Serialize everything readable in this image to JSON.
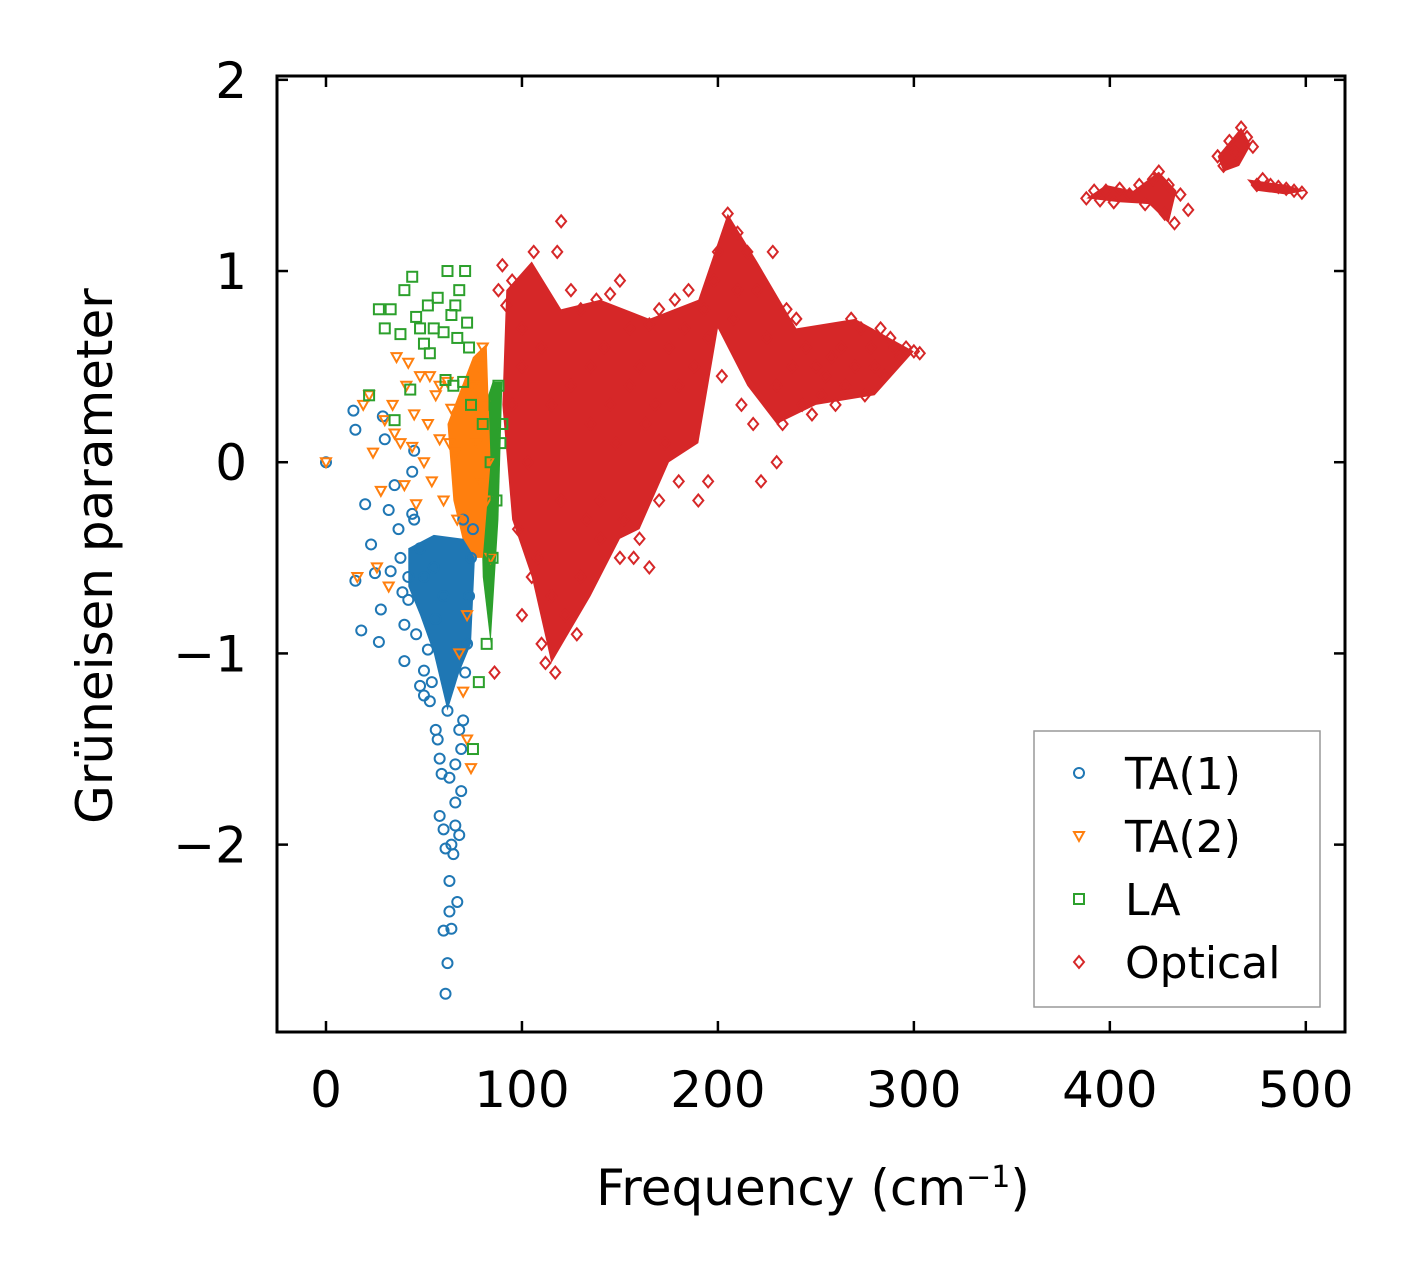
{
  "chart_data": {
    "type": "scatter",
    "title": "",
    "xlabel": "Frequency (cm",
    "xlabel_sup": "−1",
    "xlabel_suffix": ")",
    "ylabel": "Grüneisen parameter",
    "xlim": [
      -25,
      520
    ],
    "ylim": [
      -2.98,
      2.02
    ],
    "x_ticks": [
      0,
      100,
      200,
      300,
      400,
      500
    ],
    "x_tick_labels": [
      "0",
      "100",
      "200",
      "300",
      "400",
      "500"
    ],
    "y_ticks": [
      -2,
      -1,
      0,
      1,
      2
    ],
    "y_tick_labels": [
      "−2",
      "−1",
      "0",
      "1",
      "2"
    ],
    "grid": false,
    "legend_position": "bottom-right",
    "series": [
      {
        "name": "TA(1)",
        "marker": "circle",
        "color": "#1f77b4",
        "points": [
          [
            0,
            0
          ],
          [
            15,
            -0.62
          ],
          [
            14,
            0.27
          ],
          [
            15,
            0.17
          ],
          [
            18,
            -0.88
          ],
          [
            20,
            -0.22
          ],
          [
            23,
            -0.43
          ],
          [
            25,
            -0.58
          ],
          [
            27,
            -0.94
          ],
          [
            28,
            -0.77
          ],
          [
            29,
            0.24
          ],
          [
            30,
            0.12
          ],
          [
            32,
            -0.25
          ],
          [
            33,
            -0.57
          ],
          [
            35,
            -0.12
          ],
          [
            37,
            -0.35
          ],
          [
            38,
            -0.5
          ],
          [
            39,
            -0.68
          ],
          [
            40,
            -0.85
          ],
          [
            40,
            -1.04
          ],
          [
            42,
            -0.72
          ],
          [
            44,
            -0.27
          ],
          [
            45,
            0.06
          ],
          [
            46,
            -0.9
          ],
          [
            48,
            -1.17
          ],
          [
            50,
            -1.22
          ],
          [
            50,
            -1.09
          ],
          [
            52,
            -0.98
          ],
          [
            53,
            -1.25
          ],
          [
            55,
            -0.55
          ],
          [
            56,
            -0.82
          ],
          [
            57,
            -1.45
          ],
          [
            58,
            -1.85
          ],
          [
            59,
            -1.63
          ],
          [
            60,
            -1.92
          ],
          [
            60,
            -2.45
          ],
          [
            61,
            -2.78
          ],
          [
            62,
            -2.62
          ],
          [
            62,
            -1.3
          ],
          [
            63,
            -2.19
          ],
          [
            64,
            -2.44
          ],
          [
            65,
            -2.05
          ],
          [
            66,
            -1.58
          ],
          [
            66,
            -1.78
          ],
          [
            67,
            -2.3
          ],
          [
            68,
            -1.95
          ],
          [
            69,
            -1.5
          ],
          [
            70,
            -1.35
          ],
          [
            71,
            -1.1
          ],
          [
            72,
            -0.95
          ],
          [
            73,
            -0.7
          ],
          [
            74,
            -0.5
          ],
          [
            75,
            -0.35
          ],
          [
            63,
            -2.35
          ],
          [
            64,
            -2.0
          ],
          [
            61,
            -2.02
          ],
          [
            66,
            -1.9
          ],
          [
            69,
            -1.72
          ],
          [
            63,
            -1.65
          ],
          [
            68,
            -1.4
          ],
          [
            58,
            -1.55
          ],
          [
            56,
            -1.4
          ],
          [
            54,
            -1.15
          ],
          [
            50,
            -0.6
          ],
          [
            48,
            -0.45
          ],
          [
            45,
            -0.3
          ],
          [
            44,
            -0.05
          ],
          [
            42,
            -0.6
          ],
          [
            60,
            -0.7
          ],
          [
            70,
            -0.3
          ]
        ]
      },
      {
        "name": "TA(2)",
        "marker": "triangle-down",
        "color": "#ff7f0e",
        "points": [
          [
            0,
            0
          ],
          [
            16,
            -0.6
          ],
          [
            19,
            0.3
          ],
          [
            22,
            0.35
          ],
          [
            24,
            0.05
          ],
          [
            26,
            -0.55
          ],
          [
            28,
            -0.15
          ],
          [
            30,
            0.22
          ],
          [
            32,
            -0.65
          ],
          [
            34,
            0.3
          ],
          [
            35,
            0.15
          ],
          [
            36,
            0.55
          ],
          [
            38,
            0.1
          ],
          [
            40,
            -0.12
          ],
          [
            42,
            0.52
          ],
          [
            44,
            0.08
          ],
          [
            46,
            -0.22
          ],
          [
            48,
            0.45
          ],
          [
            50,
            0.0
          ],
          [
            52,
            0.2
          ],
          [
            54,
            -0.1
          ],
          [
            56,
            0.35
          ],
          [
            58,
            0.12
          ],
          [
            60,
            -0.2
          ],
          [
            62,
            0.42
          ],
          [
            64,
            0.28
          ],
          [
            66,
            0.05
          ],
          [
            68,
            -1.0
          ],
          [
            70,
            -1.2
          ],
          [
            72,
            -1.45
          ],
          [
            74,
            -1.6
          ],
          [
            75,
            0.4
          ],
          [
            77,
            0.1
          ],
          [
            78,
            0.5
          ],
          [
            80,
            0.6
          ],
          [
            81,
            0.3
          ],
          [
            82,
            -0.2
          ],
          [
            83,
            0.0
          ],
          [
            84,
            -0.5
          ],
          [
            58,
            0.4
          ],
          [
            53,
            0.45
          ],
          [
            45,
            0.25
          ],
          [
            41,
            0.4
          ],
          [
            63,
            0.1
          ],
          [
            67,
            -0.3
          ],
          [
            72,
            -0.8
          ],
          [
            76,
            0.2
          ],
          [
            79,
            -0.1
          ]
        ]
      },
      {
        "name": "LA",
        "marker": "square",
        "color": "#2ca02c",
        "points": [
          [
            22,
            0.35
          ],
          [
            27,
            0.8
          ],
          [
            30,
            0.7
          ],
          [
            33,
            0.8
          ],
          [
            35,
            0.22
          ],
          [
            38,
            0.67
          ],
          [
            40,
            0.9
          ],
          [
            43,
            0.38
          ],
          [
            44,
            0.97
          ],
          [
            46,
            0.76
          ],
          [
            48,
            0.7
          ],
          [
            50,
            0.62
          ],
          [
            52,
            0.82
          ],
          [
            53,
            0.57
          ],
          [
            55,
            0.7
          ],
          [
            57,
            0.86
          ],
          [
            60,
            0.68
          ],
          [
            61,
            0.43
          ],
          [
            62,
            1.0
          ],
          [
            64,
            0.77
          ],
          [
            66,
            0.82
          ],
          [
            67,
            0.65
          ],
          [
            68,
            0.9
          ],
          [
            70,
            0.42
          ],
          [
            71,
            1.0
          ],
          [
            72,
            0.73
          ],
          [
            74,
            0.3
          ],
          [
            75,
            -1.5
          ],
          [
            78,
            -1.15
          ],
          [
            80,
            0.2
          ],
          [
            82,
            -0.95
          ],
          [
            84,
            0.0
          ],
          [
            85,
            -0.5
          ],
          [
            86,
            0.3
          ],
          [
            87,
            -0.2
          ],
          [
            88,
            0.4
          ],
          [
            89,
            0.1
          ],
          [
            90,
            0.2
          ],
          [
            65,
            0.4
          ],
          [
            73,
            0.6
          ]
        ]
      },
      {
        "name": "Optical",
        "marker": "diamond",
        "color": "#d62728",
        "points": [
          [
            86,
            -1.1
          ],
          [
            88,
            0.9
          ],
          [
            90,
            1.03
          ],
          [
            92,
            0.82
          ],
          [
            95,
            0.95
          ],
          [
            98,
            -0.35
          ],
          [
            100,
            0.5
          ],
          [
            103,
            0.0
          ],
          [
            106,
            1.1
          ],
          [
            108,
            -0.5
          ],
          [
            110,
            0.6
          ],
          [
            112,
            -1.05
          ],
          [
            115,
            0.3
          ],
          [
            117,
            -1.1
          ],
          [
            118,
            1.1
          ],
          [
            120,
            1.26
          ],
          [
            122,
            -0.8
          ],
          [
            125,
            0.4
          ],
          [
            128,
            -0.9
          ],
          [
            130,
            0.8
          ],
          [
            133,
            -0.3
          ],
          [
            135,
            0.2
          ],
          [
            138,
            0.85
          ],
          [
            140,
            -0.4
          ],
          [
            142,
            0.6
          ],
          [
            145,
            0.88
          ],
          [
            148,
            0.1
          ],
          [
            150,
            0.95
          ],
          [
            152,
            -0.3
          ],
          [
            155,
            0.7
          ],
          [
            157,
            -0.5
          ],
          [
            160,
            0.5
          ],
          [
            163,
            0.2
          ],
          [
            165,
            0.72
          ],
          [
            168,
            0.3
          ],
          [
            170,
            0.8
          ],
          [
            173,
            0.1
          ],
          [
            175,
            0.6
          ],
          [
            178,
            0.85
          ],
          [
            180,
            0.4
          ],
          [
            183,
            0.7
          ],
          [
            185,
            0.9
          ],
          [
            188,
            0.5
          ],
          [
            190,
            -0.2
          ],
          [
            193,
            0.8
          ],
          [
            195,
            0.65
          ],
          [
            198,
            0.95
          ],
          [
            200,
            1.1
          ],
          [
            202,
            0.45
          ],
          [
            205,
            1.3
          ],
          [
            208,
            0.75
          ],
          [
            210,
            1.2
          ],
          [
            212,
            0.3
          ],
          [
            215,
            1.1
          ],
          [
            218,
            0.2
          ],
          [
            220,
            0.9
          ],
          [
            222,
            -0.1
          ],
          [
            225,
            0.65
          ],
          [
            228,
            1.1
          ],
          [
            230,
            0.4
          ],
          [
            233,
            0.2
          ],
          [
            235,
            0.8
          ],
          [
            238,
            0.5
          ],
          [
            240,
            0.75
          ],
          [
            243,
            0.3
          ],
          [
            245,
            0.6
          ],
          [
            248,
            0.25
          ],
          [
            250,
            0.5
          ],
          [
            253,
            0.35
          ],
          [
            255,
            0.45
          ],
          [
            258,
            0.55
          ],
          [
            260,
            0.3
          ],
          [
            263,
            0.6
          ],
          [
            265,
            0.4
          ],
          [
            268,
            0.75
          ],
          [
            270,
            0.5
          ],
          [
            273,
            0.7
          ],
          [
            275,
            0.35
          ],
          [
            278,
            0.6
          ],
          [
            280,
            0.5
          ],
          [
            283,
            0.7
          ],
          [
            285,
            0.45
          ],
          [
            288,
            0.65
          ],
          [
            290,
            0.6
          ],
          [
            293,
            0.55
          ],
          [
            296,
            0.6
          ],
          [
            300,
            0.58
          ],
          [
            303,
            0.57
          ],
          [
            388,
            1.38
          ],
          [
            392,
            1.42
          ],
          [
            395,
            1.37
          ],
          [
            398,
            1.42
          ],
          [
            402,
            1.36
          ],
          [
            405,
            1.43
          ],
          [
            410,
            1.4
          ],
          [
            415,
            1.45
          ],
          [
            418,
            1.35
          ],
          [
            422,
            1.48
          ],
          [
            425,
            1.52
          ],
          [
            428,
            1.3
          ],
          [
            430,
            1.45
          ],
          [
            433,
            1.25
          ],
          [
            436,
            1.4
          ],
          [
            440,
            1.32
          ],
          [
            455,
            1.6
          ],
          [
            458,
            1.55
          ],
          [
            461,
            1.68
          ],
          [
            464,
            1.62
          ],
          [
            467,
            1.75
          ],
          [
            470,
            1.7
          ],
          [
            473,
            1.65
          ],
          [
            475,
            1.45
          ],
          [
            478,
            1.48
          ],
          [
            482,
            1.45
          ],
          [
            486,
            1.44
          ],
          [
            490,
            1.43
          ],
          [
            494,
            1.42
          ],
          [
            498,
            1.41
          ],
          [
            100,
            -0.8
          ],
          [
            105,
            -0.6
          ],
          [
            110,
            -0.95
          ],
          [
            115,
            -0.7
          ],
          [
            120,
            -0.2
          ],
          [
            130,
            -0.6
          ],
          [
            140,
            -0.2
          ],
          [
            150,
            -0.5
          ],
          [
            160,
            -0.4
          ],
          [
            165,
            -0.55
          ],
          [
            170,
            -0.2
          ],
          [
            180,
            -0.1
          ],
          [
            195,
            -0.1
          ],
          [
            95,
            0.3
          ],
          [
            100,
            0.7
          ],
          [
            125,
            0.9
          ],
          [
            135,
            0.5
          ],
          [
            145,
            0.3
          ],
          [
            155,
            0.4
          ],
          [
            230,
            0.0
          ],
          [
            210,
            0.9
          ]
        ]
      }
    ]
  }
}
